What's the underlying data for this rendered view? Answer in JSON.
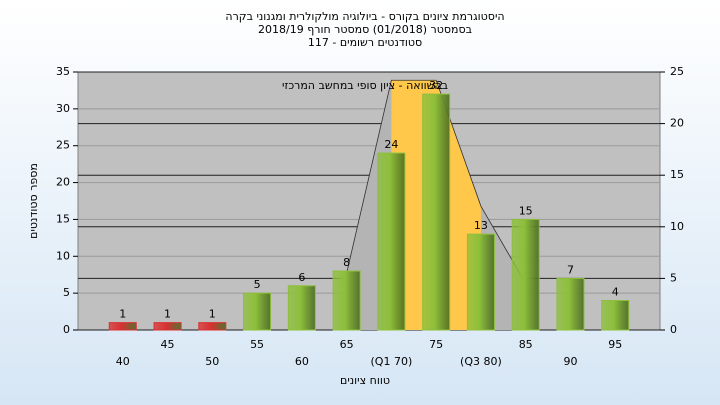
{
  "chart_data": {
    "type": "bar",
    "title": "היסטוגרמת ציונים בקורס - ביולוגיה מולקולרית ומגנוני בקרה",
    "subtitle": "בסמסטר (01/2018) סמסטר חורף 2018/19",
    "subtitle2": "סטודנטים רשומים - 117",
    "annotation": "בהשוואה - ציון סופי במחשב המרכזי",
    "x_label": "טווח ציונים",
    "y_label": "מספר סטודנטים",
    "categories": [
      "40",
      "45",
      "50",
      "55",
      "60",
      "65",
      "(Q1 70)",
      "75",
      "(Q3 80)",
      "85",
      "90",
      "95"
    ],
    "series": [
      {
        "type": "bar",
        "colors": [
          "#d93030",
          "#d93030",
          "#d93030",
          "#8dbf3a",
          "#8dbf3a",
          "#8dbf3a",
          "#8dbf3a",
          "#8dbf3a",
          "#8dbf3a",
          "#8dbf3a",
          "#8dbf3a",
          "#8dbf3a"
        ],
        "values": [
          1,
          1,
          1,
          5,
          6,
          8,
          24,
          32,
          13,
          15,
          7,
          4
        ]
      },
      {
        "type": "area",
        "axis": "y2",
        "color": "#b4b4b4",
        "highlight_color": "#ffc84a",
        "values": [
          null,
          null,
          null,
          null,
          null,
          5.5,
          24.2,
          24.2,
          12,
          4.5,
          null,
          null
        ]
      }
    ],
    "ylim": [
      0,
      35
    ],
    "yticks": [
      0,
      5,
      10,
      15,
      20,
      25,
      30,
      35
    ],
    "y2lim": [
      0,
      25
    ],
    "y2ticks": [
      0,
      5,
      10,
      15,
      20,
      25
    ],
    "grid": true
  }
}
